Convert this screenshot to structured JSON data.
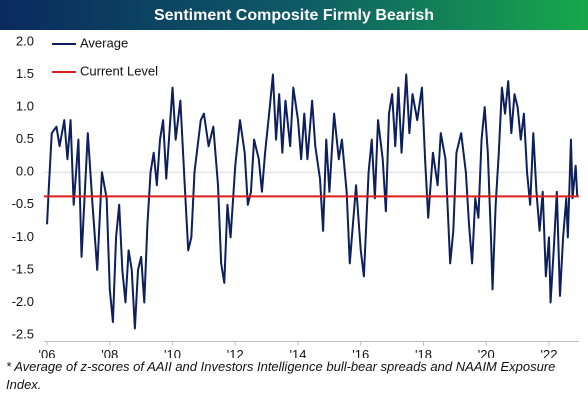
{
  "chart_data": {
    "type": "line",
    "title": "Sentiment Composite Firmly Bearish",
    "note": "* Average of z-scores of AAII and Investors Intelligence bull-bear spreads and NAAIM Exposure Index.",
    "x": [
      2006.0,
      2006.05,
      2006.15,
      2006.3,
      2006.4,
      2006.55,
      2006.65,
      2006.75,
      2006.85,
      2007.0,
      2007.1,
      2007.3,
      2007.45,
      2007.6,
      2007.75,
      2007.9,
      2008.0,
      2008.1,
      2008.2,
      2008.3,
      2008.4,
      2008.5,
      2008.6,
      2008.7,
      2008.8,
      2008.9,
      2009.0,
      2009.1,
      2009.2,
      2009.3,
      2009.4,
      2009.5,
      2009.6,
      2009.7,
      2009.8,
      2009.9,
      2010.0,
      2010.1,
      2010.25,
      2010.4,
      2010.5,
      2010.6,
      2010.7,
      2010.8,
      2010.9,
      2011.0,
      2011.15,
      2011.3,
      2011.45,
      2011.55,
      2011.65,
      2011.75,
      2011.85,
      2012.0,
      2012.15,
      2012.3,
      2012.4,
      2012.5,
      2012.6,
      2012.75,
      2012.85,
      2012.95,
      2013.1,
      2013.2,
      2013.3,
      2013.4,
      2013.5,
      2013.6,
      2013.75,
      2013.85,
      2014.0,
      2014.1,
      2014.2,
      2014.3,
      2014.45,
      2014.55,
      2014.7,
      2014.8,
      2014.9,
      2015.0,
      2015.15,
      2015.3,
      2015.4,
      2015.55,
      2015.65,
      2015.75,
      2015.85,
      2016.0,
      2016.1,
      2016.25,
      2016.35,
      2016.45,
      2016.55,
      2016.7,
      2016.8,
      2016.9,
      2017.0,
      2017.1,
      2017.2,
      2017.3,
      2017.45,
      2017.55,
      2017.65,
      2017.8,
      2017.95,
      2018.05,
      2018.15,
      2018.3,
      2018.45,
      2018.55,
      2018.7,
      2018.85,
      2018.95,
      2019.05,
      2019.2,
      2019.35,
      2019.45,
      2019.55,
      2019.65,
      2019.75,
      2019.85,
      2019.95,
      2020.05,
      2020.15,
      2020.2,
      2020.3,
      2020.4,
      2020.5,
      2020.6,
      2020.7,
      2020.8,
      2020.9,
      2021.0,
      2021.1,
      2021.2,
      2021.3,
      2021.4,
      2021.5,
      2021.6,
      2021.7,
      2021.8,
      2021.9,
      2022.0,
      2022.05,
      2022.15,
      2022.25,
      2022.35,
      2022.45,
      2022.55,
      2022.6,
      2022.7,
      2022.75,
      2022.85,
      2022.9
    ],
    "series": [
      {
        "name": "Average",
        "color": "#0d1f5c",
        "values": [
          -0.8,
          -0.3,
          0.6,
          0.7,
          0.4,
          0.8,
          0.2,
          0.8,
          -0.5,
          0.5,
          -1.3,
          0.6,
          -0.5,
          -1.5,
          0.0,
          -0.4,
          -1.8,
          -2.3,
          -1.0,
          -0.5,
          -1.5,
          -2.0,
          -1.2,
          -1.5,
          -2.4,
          -1.5,
          -1.3,
          -2.0,
          -0.8,
          0.0,
          0.3,
          -0.2,
          0.5,
          0.8,
          -0.1,
          0.6,
          1.3,
          0.5,
          1.1,
          -0.3,
          -1.2,
          -1.0,
          0.0,
          0.4,
          0.8,
          0.9,
          0.4,
          0.7,
          -0.2,
          -1.4,
          -1.7,
          -0.5,
          -1.0,
          0.1,
          0.8,
          0.3,
          -0.5,
          -0.3,
          0.5,
          0.2,
          -0.3,
          0.3,
          1.0,
          1.5,
          0.5,
          1.2,
          0.3,
          1.1,
          0.4,
          1.3,
          0.8,
          0.2,
          0.9,
          0.2,
          1.1,
          0.4,
          -0.1,
          -0.9,
          0.5,
          -0.3,
          0.9,
          0.2,
          0.5,
          -0.3,
          -1.4,
          -0.8,
          -0.2,
          -1.2,
          -1.6,
          0.0,
          0.5,
          -0.4,
          0.8,
          0.2,
          -0.6,
          0.9,
          1.2,
          0.4,
          1.3,
          0.3,
          1.5,
          0.6,
          1.2,
          0.8,
          1.3,
          0.2,
          -0.7,
          0.3,
          -0.2,
          0.6,
          0.2,
          -1.4,
          -0.9,
          0.3,
          0.6,
          0.0,
          -0.8,
          -1.4,
          -0.4,
          -0.7,
          0.5,
          1.0,
          0.3,
          -1.0,
          -1.8,
          -0.5,
          0.3,
          1.3,
          0.9,
          1.4,
          0.6,
          1.2,
          1.0,
          0.5,
          0.9,
          0.0,
          -0.5,
          0.6,
          -0.3,
          -0.9,
          -0.3,
          -1.6,
          -1.0,
          -2.0,
          -1.2,
          -0.3,
          -1.9,
          -1.0,
          -0.4,
          -1.0,
          0.5,
          -0.4,
          0.1,
          -0.37
        ]
      }
    ],
    "reference_line": {
      "name": "Current Level",
      "value": -0.37,
      "color": "#e01b1b"
    },
    "xlim": [
      2005.9,
      2022.95
    ],
    "xticks": [
      {
        "value": 2006,
        "label": "'06"
      },
      {
        "value": 2008,
        "label": "'08"
      },
      {
        "value": 2010,
        "label": "'10"
      },
      {
        "value": 2012,
        "label": "'12"
      },
      {
        "value": 2014,
        "label": "'14"
      },
      {
        "value": 2016,
        "label": "'16"
      },
      {
        "value": 2018,
        "label": "'18"
      },
      {
        "value": 2020,
        "label": "'20"
      },
      {
        "value": 2022,
        "label": "'22"
      }
    ],
    "ylim": [
      -2.6,
      2.1
    ],
    "yticks": [
      {
        "value": 2,
        "label": "2.0"
      },
      1.5,
      {
        "value": 1,
        "label": "1.0"
      },
      0.5,
      {
        "value": 0,
        "label": "0.0"
      },
      -0.5,
      {
        "value": -1,
        "label": "-1.0"
      },
      -1.5,
      {
        "value": -2,
        "label": "-2.0"
      },
      -2.5
    ],
    "zero_line": true
  }
}
